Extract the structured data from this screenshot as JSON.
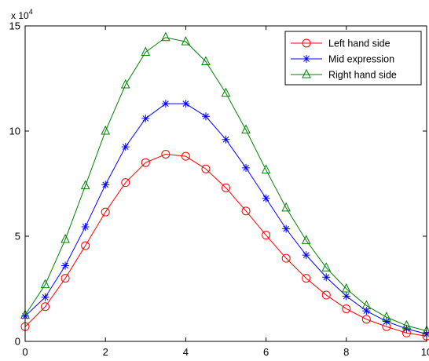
{
  "chart_data": {
    "type": "line",
    "x": [
      0,
      0.5,
      1,
      1.5,
      2,
      2.5,
      3,
      3.5,
      4,
      4.5,
      5,
      5.5,
      6,
      6.5,
      7,
      7.5,
      8,
      8.5,
      9,
      9.5,
      10
    ],
    "series": [
      {
        "name": "Left hand side",
        "color": "#ff0000",
        "marker": "circle",
        "values": [
          7000,
          16500,
          30000,
          45500,
          61500,
          75500,
          85000,
          89000,
          88000,
          82000,
          73000,
          62000,
          50500,
          39500,
          30000,
          22000,
          15500,
          10500,
          7000,
          4000,
          2500
        ]
      },
      {
        "name": "Mid expression",
        "color": "#0000ff",
        "marker": "asterisk",
        "values": [
          12000,
          21000,
          36000,
          54500,
          74500,
          92500,
          106000,
          113000,
          113000,
          107000,
          96000,
          82500,
          68000,
          53500,
          41000,
          30500,
          21500,
          14500,
          9500,
          6000,
          3500
        ]
      },
      {
        "name": "Right hand side",
        "color": "#008000",
        "marker": "triangle",
        "values": [
          12500,
          27000,
          48500,
          74000,
          100000,
          122000,
          137500,
          144500,
          142500,
          133000,
          118000,
          100500,
          81500,
          63500,
          48000,
          35000,
          25000,
          17000,
          11500,
          7500,
          5000
        ]
      }
    ],
    "x_ticks": [
      "0",
      "2",
      "4",
      "6",
      "8",
      "10"
    ],
    "y_ticks": [
      "0",
      "5",
      "10",
      "15"
    ],
    "y_multiplier_base": "x 10",
    "y_multiplier_exp": "4",
    "xlim": [
      0,
      10
    ],
    "ylim": [
      0,
      150000
    ],
    "grid": false,
    "legend_position": "top-right"
  }
}
